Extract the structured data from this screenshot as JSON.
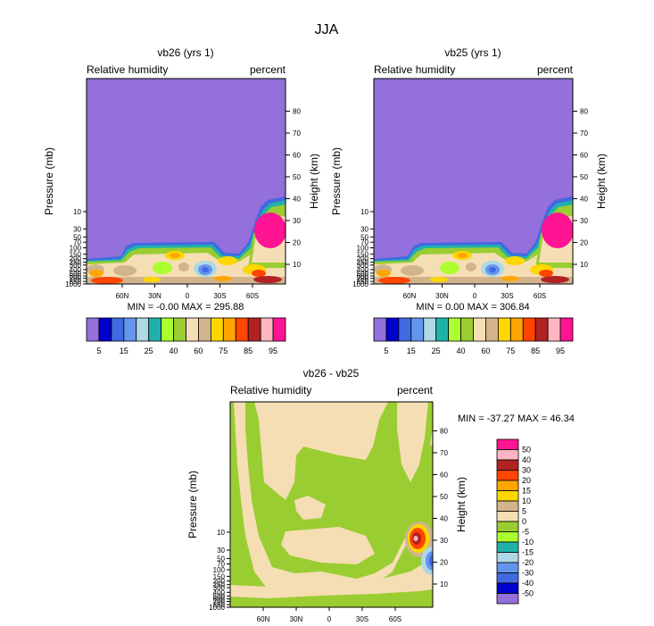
{
  "figure_title": "JJA",
  "chart_data": [
    {
      "id": "vb26",
      "type": "contour",
      "title": "vb26 (yrs 1)",
      "left_label": "Relative humidity",
      "right_label": "percent",
      "ylabel": "Pressure (mb)",
      "ylabel_right": "Height (km)",
      "x_ticks": [
        "60N",
        "30N",
        "0",
        "30S",
        "60S"
      ],
      "p_ticks": [
        "10",
        "30",
        "50",
        "70",
        "100",
        "150",
        "200",
        "250",
        "300",
        "400",
        "500",
        "600",
        "700",
        "850",
        "1000"
      ],
      "z_ticks": [
        "10",
        "20",
        "30",
        "40",
        "50",
        "60",
        "70",
        "80"
      ],
      "stats": "MIN = -0.00   MAX = 295.88",
      "min": -0.0,
      "max": 295.88
    },
    {
      "id": "vb25",
      "type": "contour",
      "title": "vb25 (yrs 1)",
      "left_label": "Relative humidity",
      "right_label": "percent",
      "ylabel": "Pressure (mb)",
      "ylabel_right": "Height (km)",
      "x_ticks": [
        "60N",
        "30N",
        "0",
        "30S",
        "60S"
      ],
      "p_ticks": [
        "10",
        "30",
        "50",
        "70",
        "100",
        "150",
        "200",
        "250",
        "300",
        "400",
        "500",
        "600",
        "700",
        "850",
        "1000"
      ],
      "z_ticks": [
        "10",
        "20",
        "30",
        "40",
        "50",
        "60",
        "70",
        "80"
      ],
      "stats": "MIN =  0.00   MAX = 306.84",
      "min": 0.0,
      "max": 306.84
    },
    {
      "id": "diff",
      "type": "contour",
      "title": "vb26 - vb25",
      "left_label": "Relative humidity",
      "right_label": "percent",
      "ylabel": "Pressure (mb)",
      "ylabel_right": "Height (km)",
      "x_ticks": [
        "60N",
        "30N",
        "0",
        "30S",
        "60S"
      ],
      "p_ticks": [
        "10",
        "30",
        "50",
        "70",
        "100",
        "150",
        "200",
        "250",
        "300",
        "400",
        "500",
        "600",
        "700",
        "850",
        "1000"
      ],
      "z_ticks": [
        "10",
        "20",
        "30",
        "40",
        "50",
        "60",
        "70",
        "80"
      ],
      "stats": "MIN = -37.27   MAX = 46.34",
      "min": -37.27,
      "max": 46.34
    }
  ],
  "colorbar_main": {
    "colors": [
      "#9370db",
      "#0000cd",
      "#4169e1",
      "#6495ed",
      "#add8e6",
      "#20b2aa",
      "#adff2f",
      "#9acd32",
      "#f5deb3",
      "#d2b48c",
      "#ffd700",
      "#ffa500",
      "#ff4500",
      "#b22222",
      "#ffb6c1",
      "#ff1493"
    ],
    "labels": [
      "5",
      "15",
      "25",
      "40",
      "60",
      "75",
      "85",
      "95"
    ]
  },
  "colorbar_diff": {
    "colors": [
      "#ff1493",
      "#ffb6c1",
      "#b22222",
      "#ff4500",
      "#ffa500",
      "#ffd700",
      "#d2b48c",
      "#f5deb3",
      "#9acd32",
      "#adff2f",
      "#20b2aa",
      "#add8e6",
      "#6495ed",
      "#4169e1",
      "#0000cd",
      "#9370db"
    ],
    "labels": [
      "50",
      "40",
      "30",
      "20",
      "15",
      "10",
      "5",
      "0",
      "-5",
      "-10",
      "-15",
      "-20",
      "-30",
      "-40",
      "-50"
    ]
  }
}
